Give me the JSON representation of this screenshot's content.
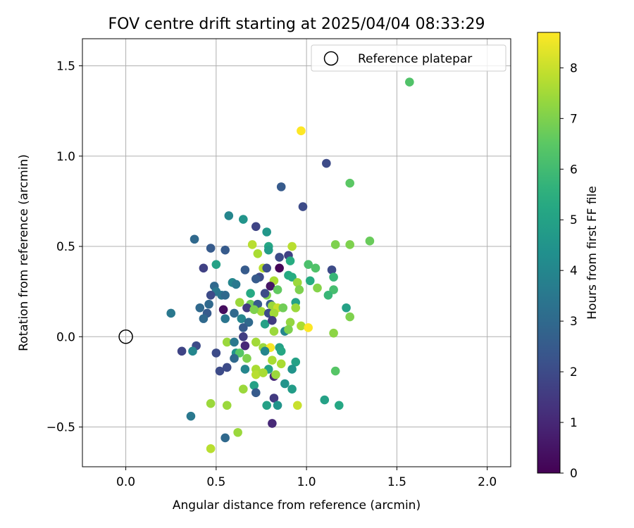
{
  "chart_data": {
    "type": "scatter",
    "title": "FOV centre drift starting at 2025/04/04 08:33:29",
    "xlabel": "Angular distance from reference (arcmin)",
    "ylabel": "Rotation from reference (arcmin)",
    "xlim": [
      -0.24,
      2.13
    ],
    "ylim": [
      -0.72,
      1.65
    ],
    "xticks": [
      0.0,
      0.5,
      1.0,
      1.5,
      2.0
    ],
    "xtick_labels": [
      "0.0",
      "0.5",
      "1.0",
      "1.5",
      "2.0"
    ],
    "yticks": [
      -0.5,
      0.0,
      0.5,
      1.0,
      1.5
    ],
    "ytick_labels": [
      "−0.5",
      "0.0",
      "0.5",
      "1.0",
      "1.5"
    ],
    "grid": true,
    "legend": {
      "placement": "top-right",
      "entries": [
        "Reference platepar"
      ]
    },
    "reference_point": {
      "x": 0.0,
      "y": 0.0
    },
    "colorbar": {
      "label": "Hours from first FF file",
      "range": [
        0,
        8.7
      ],
      "ticks": [
        0,
        1,
        2,
        3,
        4,
        5,
        6,
        7,
        8
      ],
      "tick_labels": [
        "0",
        "1",
        "2",
        "3",
        "4",
        "5",
        "6",
        "7",
        "8"
      ],
      "colormap": "viridis"
    },
    "points": [
      {
        "x": 1.57,
        "y": 1.41,
        "t": 6.3
      },
      {
        "x": 0.97,
        "y": 1.14,
        "t": 8.7
      },
      {
        "x": 1.11,
        "y": 0.96,
        "t": 2.0
      },
      {
        "x": 1.24,
        "y": 0.85,
        "t": 6.5
      },
      {
        "x": 0.86,
        "y": 0.83,
        "t": 2.5
      },
      {
        "x": 0.98,
        "y": 0.72,
        "t": 2.0
      },
      {
        "x": 0.57,
        "y": 0.67,
        "t": 4.0
      },
      {
        "x": 0.65,
        "y": 0.65,
        "t": 4.5
      },
      {
        "x": 0.72,
        "y": 0.61,
        "t": 1.8
      },
      {
        "x": 0.78,
        "y": 0.58,
        "t": 4.6
      },
      {
        "x": 0.38,
        "y": 0.54,
        "t": 3.0
      },
      {
        "x": 1.35,
        "y": 0.53,
        "t": 6.7
      },
      {
        "x": 0.7,
        "y": 0.51,
        "t": 7.8
      },
      {
        "x": 0.47,
        "y": 0.49,
        "t": 2.5
      },
      {
        "x": 0.79,
        "y": 0.5,
        "t": 5.2
      },
      {
        "x": 0.92,
        "y": 0.5,
        "t": 7.8
      },
      {
        "x": 1.16,
        "y": 0.51,
        "t": 7.0
      },
      {
        "x": 1.24,
        "y": 0.51,
        "t": 7.0
      },
      {
        "x": 0.55,
        "y": 0.48,
        "t": 2.5
      },
      {
        "x": 0.79,
        "y": 0.48,
        "t": 4.8
      },
      {
        "x": 0.73,
        "y": 0.46,
        "t": 7.6
      },
      {
        "x": 0.9,
        "y": 0.45,
        "t": 1.7
      },
      {
        "x": 0.85,
        "y": 0.44,
        "t": 2.0
      },
      {
        "x": 0.91,
        "y": 0.42,
        "t": 5.4
      },
      {
        "x": 0.5,
        "y": 0.4,
        "t": 5.0
      },
      {
        "x": 1.01,
        "y": 0.4,
        "t": 6.2
      },
      {
        "x": 0.43,
        "y": 0.38,
        "t": 1.7
      },
      {
        "x": 0.66,
        "y": 0.37,
        "t": 2.5
      },
      {
        "x": 0.76,
        "y": 0.38,
        "t": 7.8
      },
      {
        "x": 0.85,
        "y": 0.38,
        "t": 0.1
      },
      {
        "x": 0.78,
        "y": 0.38,
        "t": 2.1
      },
      {
        "x": 1.05,
        "y": 0.38,
        "t": 6.3
      },
      {
        "x": 1.14,
        "y": 0.37,
        "t": 2.0
      },
      {
        "x": 0.9,
        "y": 0.34,
        "t": 5.3
      },
      {
        "x": 0.92,
        "y": 0.33,
        "t": 5.4
      },
      {
        "x": 0.74,
        "y": 0.33,
        "t": 2.0
      },
      {
        "x": 1.15,
        "y": 0.33,
        "t": 5.8
      },
      {
        "x": 0.72,
        "y": 0.32,
        "t": 2.5
      },
      {
        "x": 0.82,
        "y": 0.31,
        "t": 7.6
      },
      {
        "x": 0.95,
        "y": 0.3,
        "t": 7.4
      },
      {
        "x": 1.02,
        "y": 0.31,
        "t": 5.4
      },
      {
        "x": 0.59,
        "y": 0.3,
        "t": 4.0
      },
      {
        "x": 0.61,
        "y": 0.29,
        "t": 3.5
      },
      {
        "x": 0.49,
        "y": 0.28,
        "t": 3.0
      },
      {
        "x": 0.8,
        "y": 0.28,
        "t": 0.5
      },
      {
        "x": 0.84,
        "y": 0.26,
        "t": 6.6
      },
      {
        "x": 1.06,
        "y": 0.27,
        "t": 7.1
      },
      {
        "x": 0.96,
        "y": 0.26,
        "t": 7.0
      },
      {
        "x": 1.15,
        "y": 0.26,
        "t": 6.1
      },
      {
        "x": 0.5,
        "y": 0.25,
        "t": 3.5
      },
      {
        "x": 0.47,
        "y": 0.23,
        "t": 2.0
      },
      {
        "x": 0.53,
        "y": 0.23,
        "t": 3.4
      },
      {
        "x": 0.55,
        "y": 0.23,
        "t": 3.0
      },
      {
        "x": 0.69,
        "y": 0.24,
        "t": 5.3
      },
      {
        "x": 0.78,
        "y": 0.23,
        "t": 7.0
      },
      {
        "x": 0.77,
        "y": 0.24,
        "t": 2.0
      },
      {
        "x": 1.12,
        "y": 0.23,
        "t": 5.8
      },
      {
        "x": 0.63,
        "y": 0.19,
        "t": 7.4
      },
      {
        "x": 0.69,
        "y": 0.18,
        "t": 6.8
      },
      {
        "x": 0.73,
        "y": 0.18,
        "t": 2.5
      },
      {
        "x": 0.8,
        "y": 0.18,
        "t": 2.5
      },
      {
        "x": 0.94,
        "y": 0.19,
        "t": 5.0
      },
      {
        "x": 0.46,
        "y": 0.18,
        "t": 3.0
      },
      {
        "x": 0.81,
        "y": 0.17,
        "t": 7.4
      },
      {
        "x": 0.67,
        "y": 0.16,
        "t": 1.5
      },
      {
        "x": 0.54,
        "y": 0.15,
        "t": 0.3
      },
      {
        "x": 0.41,
        "y": 0.16,
        "t": 3.0
      },
      {
        "x": 0.45,
        "y": 0.13,
        "t": 2.5
      },
      {
        "x": 0.25,
        "y": 0.13,
        "t": 3.5
      },
      {
        "x": 0.84,
        "y": 0.16,
        "t": 8.0
      },
      {
        "x": 0.87,
        "y": 0.16,
        "t": 6.8
      },
      {
        "x": 0.94,
        "y": 0.16,
        "t": 7.4
      },
      {
        "x": 1.22,
        "y": 0.16,
        "t": 5.0
      },
      {
        "x": 0.75,
        "y": 0.14,
        "t": 7.5
      },
      {
        "x": 0.71,
        "y": 0.15,
        "t": 7.0
      },
      {
        "x": 0.79,
        "y": 0.13,
        "t": 2.0
      },
      {
        "x": 0.82,
        "y": 0.13,
        "t": 7.5
      },
      {
        "x": 0.6,
        "y": 0.13,
        "t": 3.0
      },
      {
        "x": 1.24,
        "y": 0.11,
        "t": 7.0
      },
      {
        "x": 0.43,
        "y": 0.1,
        "t": 3.0
      },
      {
        "x": 0.55,
        "y": 0.1,
        "t": 3.4
      },
      {
        "x": 0.64,
        "y": 0.1,
        "t": 4.0
      },
      {
        "x": 0.68,
        "y": 0.08,
        "t": 3.0
      },
      {
        "x": 0.77,
        "y": 0.07,
        "t": 5.0
      },
      {
        "x": 0.81,
        "y": 0.09,
        "t": 1.5
      },
      {
        "x": 0.91,
        "y": 0.08,
        "t": 7.3
      },
      {
        "x": 0.65,
        "y": 0.05,
        "t": 2.5
      },
      {
        "x": 0.97,
        "y": 0.06,
        "t": 7.6
      },
      {
        "x": 1.01,
        "y": 0.05,
        "t": 8.7
      },
      {
        "x": 0.82,
        "y": 0.03,
        "t": 7.4
      },
      {
        "x": 0.88,
        "y": 0.03,
        "t": 4.0
      },
      {
        "x": 0.9,
        "y": 0.04,
        "t": 7.0
      },
      {
        "x": 1.15,
        "y": 0.02,
        "t": 7.2
      },
      {
        "x": 0.65,
        "y": 0.0,
        "t": 1.6
      },
      {
        "x": 0.72,
        "y": -0.03,
        "t": 7.5
      },
      {
        "x": 0.56,
        "y": -0.03,
        "t": 7.4
      },
      {
        "x": 0.6,
        "y": -0.03,
        "t": 3.5
      },
      {
        "x": 0.66,
        "y": -0.05,
        "t": 1.0
      },
      {
        "x": 0.76,
        "y": -0.06,
        "t": 7.4
      },
      {
        "x": 0.8,
        "y": -0.06,
        "t": 8.6
      },
      {
        "x": 0.85,
        "y": -0.06,
        "t": 5.0
      },
      {
        "x": 0.39,
        "y": -0.05,
        "t": 2.0
      },
      {
        "x": 0.31,
        "y": -0.08,
        "t": 1.8
      },
      {
        "x": 0.37,
        "y": -0.08,
        "t": 4.0
      },
      {
        "x": 0.5,
        "y": -0.09,
        "t": 2.0
      },
      {
        "x": 0.61,
        "y": -0.09,
        "t": 4.5
      },
      {
        "x": 0.63,
        "y": -0.09,
        "t": 6.4
      },
      {
        "x": 0.77,
        "y": -0.08,
        "t": 4.0
      },
      {
        "x": 0.86,
        "y": -0.08,
        "t": 5.2
      },
      {
        "x": 0.67,
        "y": -0.12,
        "t": 7.0
      },
      {
        "x": 0.6,
        "y": -0.12,
        "t": 3.0
      },
      {
        "x": 0.81,
        "y": -0.13,
        "t": 7.6
      },
      {
        "x": 0.86,
        "y": -0.15,
        "t": 7.6
      },
      {
        "x": 0.94,
        "y": -0.14,
        "t": 5.0
      },
      {
        "x": 0.56,
        "y": -0.17,
        "t": 2.0
      },
      {
        "x": 0.52,
        "y": -0.19,
        "t": 2.0
      },
      {
        "x": 0.66,
        "y": -0.18,
        "t": 4.0
      },
      {
        "x": 0.72,
        "y": -0.18,
        "t": 7.6
      },
      {
        "x": 0.72,
        "y": -0.21,
        "t": 7.8
      },
      {
        "x": 0.79,
        "y": -0.18,
        "t": 5.0
      },
      {
        "x": 0.92,
        "y": -0.18,
        "t": 4.5
      },
      {
        "x": 0.76,
        "y": -0.2,
        "t": 7.6
      },
      {
        "x": 0.82,
        "y": -0.22,
        "t": 1.0
      },
      {
        "x": 0.83,
        "y": -0.21,
        "t": 7.4
      },
      {
        "x": 1.16,
        "y": -0.19,
        "t": 6.4
      },
      {
        "x": 0.71,
        "y": -0.27,
        "t": 5.0
      },
      {
        "x": 0.65,
        "y": -0.29,
        "t": 7.4
      },
      {
        "x": 0.88,
        "y": -0.26,
        "t": 4.5
      },
      {
        "x": 0.92,
        "y": -0.29,
        "t": 4.8
      },
      {
        "x": 0.72,
        "y": -0.31,
        "t": 2.5
      },
      {
        "x": 0.82,
        "y": -0.34,
        "t": 1.5
      },
      {
        "x": 0.78,
        "y": -0.38,
        "t": 5.0
      },
      {
        "x": 0.84,
        "y": -0.38,
        "t": 4.5
      },
      {
        "x": 0.47,
        "y": -0.37,
        "t": 7.4
      },
      {
        "x": 0.56,
        "y": -0.38,
        "t": 7.4
      },
      {
        "x": 0.95,
        "y": -0.38,
        "t": 8.0
      },
      {
        "x": 1.1,
        "y": -0.35,
        "t": 5.0
      },
      {
        "x": 1.18,
        "y": -0.38,
        "t": 5.2
      },
      {
        "x": 0.36,
        "y": -0.44,
        "t": 3.5
      },
      {
        "x": 0.81,
        "y": -0.48,
        "t": 1.0
      },
      {
        "x": 0.62,
        "y": -0.53,
        "t": 7.4
      },
      {
        "x": 0.55,
        "y": -0.56,
        "t": 3.0
      },
      {
        "x": 0.47,
        "y": -0.62,
        "t": 7.8
      }
    ]
  }
}
